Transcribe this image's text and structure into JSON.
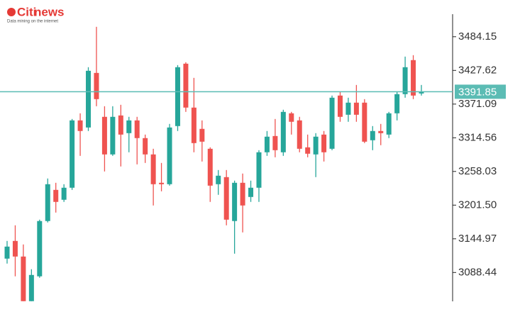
{
  "logo": {
    "brand_a": "Citi",
    "brand_b": "news",
    "tagline": "Data mining on the internet"
  },
  "chart_data": {
    "type": "candlestick",
    "open": [
      3111.7,
      3141.4,
      3115.2,
      3040.3,
      3082.0,
      3174.8,
      3227.1,
      3210.5,
      3230.7,
      3343.7,
      3331.8,
      3423.4,
      3349.7,
      3286.6,
      3352.0,
      3322.3,
      3343.7,
      3314.0,
      3286.6,
      3239.0,
      3236.6,
      3334.2,
      3438.9,
      3365.2,
      3329.5,
      3296.1,
      3236.6,
      3248.5,
      3174.8,
      3239.0,
      3215.2,
      3230.7,
      3290.2,
      3317.5,
      3290.2,
      3355.6,
      3343.7,
      3298.5,
      3286.6,
      3319.9,
      3296.1,
      3385.4,
      3353.2,
      3373.5,
      3373.5,
      3310.4,
      3325.9,
      3319.9,
      3355.6,
      3387.8,
      3444.9,
      3388.9
    ],
    "high": [
      3141.4,
      3167.6,
      3135.5,
      3093.9,
      3177.1,
      3246.2,
      3239.0,
      3236.6,
      3346.1,
      3355.6,
      3433.0,
      3500.8,
      3367.5,
      3367.5,
      3369.9,
      3349.7,
      3349.7,
      3319.9,
      3296.1,
      3272.3,
      3337.8,
      3436.5,
      3441.3,
      3415.1,
      3343.7,
      3298.5,
      3260.4,
      3260.4,
      3242.6,
      3254.5,
      3242.6,
      3293.7,
      3325.9,
      3346.1,
      3361.6,
      3358.0,
      3349.7,
      3319.9,
      3322.3,
      3325.9,
      3385.4,
      3391.3,
      3381.8,
      3403.2,
      3379.4,
      3334.2,
      3337.8,
      3358.0,
      3391.3,
      3450.8,
      3453.2,
      3403.2
    ],
    "low": [
      3103.4,
      3082.0,
      3040.3,
      3040.3,
      3079.6,
      3172.4,
      3189.0,
      3206.9,
      3227.1,
      3284.2,
      3325.9,
      3367.5,
      3258.0,
      3284.2,
      3266.4,
      3290.2,
      3269.9,
      3272.3,
      3200.9,
      3224.7,
      3234.2,
      3325.9,
      3358.0,
      3290.2,
      3274.7,
      3206.9,
      3218.8,
      3167.6,
      3120.0,
      3155.7,
      3206.9,
      3206.9,
      3284.2,
      3281.8,
      3284.2,
      3319.9,
      3290.2,
      3281.8,
      3248.5,
      3274.7,
      3293.7,
      3341.4,
      3341.4,
      3341.4,
      3305.6,
      3293.7,
      3302.1,
      3314.0,
      3343.7,
      3381.8,
      3379.4,
      3385.4
    ],
    "close": [
      3131.9,
      3115.2,
      3040.3,
      3084.3,
      3174.8,
      3236.6,
      3206.9,
      3230.7,
      3343.7,
      3325.9,
      3427.0,
      3379.4,
      3286.6,
      3349.7,
      3319.9,
      3343.7,
      3314.0,
      3286.6,
      3236.6,
      3236.6,
      3331.8,
      3433.0,
      3365.2,
      3305.6,
      3308.0,
      3234.2,
      3250.9,
      3177.1,
      3239.0,
      3200.9,
      3230.7,
      3290.2,
      3316.4,
      3293.7,
      3358.0,
      3341.4,
      3296.1,
      3287.8,
      3316.4,
      3290.2,
      3381.8,
      3349.7,
      3373.5,
      3353.2,
      3308.0,
      3325.9,
      3322.3,
      3355.6,
      3387.8,
      3433.0,
      3385.4,
      3391.85
    ],
    "up_color": "#26a69a",
    "down_color": "#ef5350",
    "price_line_color": "#5bbcb4",
    "current_price": 3391.85,
    "ylim": [
      3040,
      3522
    ],
    "yticks": [
      3088.44,
      3144.97,
      {
        "value": 3201.5,
        "label": "3201.50"
      },
      3258.03,
      3314.56,
      3371.09,
      3427.62,
      3484.15
    ]
  }
}
